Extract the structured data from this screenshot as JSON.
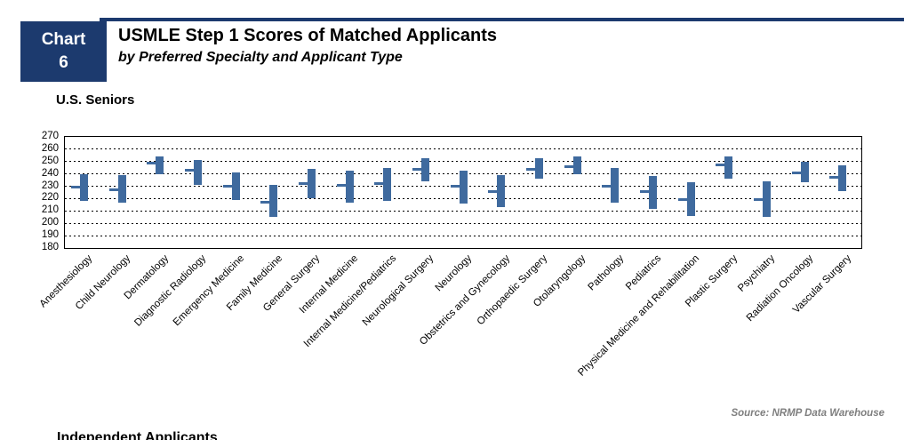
{
  "header": {
    "badge_line1": "Chart",
    "badge_line2": "6",
    "title": "USMLE Step 1 Scores of Matched Applicants",
    "subtitle": "by Preferred Specialty and Applicant Type"
  },
  "section_title": "U.S. Seniors",
  "footer": {
    "source": "Source: NRMP Data Warehouse",
    "next_section_title": "Independent Applicants"
  },
  "colors": {
    "accent_navy": "#1C3A6E",
    "bar_blue": "#3F6A9E",
    "source_gray": "#7F7F7F"
  },
  "chart_data": {
    "type": "bar",
    "subtype": "floating-range-bars-with-mean-tick",
    "title": "U.S. Seniors",
    "xlabel": "",
    "ylabel": "",
    "ylim": [
      180,
      270
    ],
    "yticks": [
      270,
      260,
      250,
      240,
      230,
      220,
      210,
      200,
      190,
      180
    ],
    "grid": "horizontal-dashed",
    "legend": "none",
    "categories": [
      "Anesthesiology",
      "Child Neurology",
      "Dermatology",
      "Diagnostic Radiology",
      "Emergency Medicine",
      "Family Medicine",
      "General Surgery",
      "Internal Medicine",
      "Internal Medicine/Pediatrics",
      "Neurological Surgery",
      "Neurology",
      "Obstetrics and Gynecology",
      "Orthopaedic Surgery",
      "Otolaryngology",
      "Pathology",
      "Pediatrics",
      "Physical Medicine and Rehabilitation",
      "Plastic Surgery",
      "Psychiatry",
      "Radiation Oncology",
      "Vascular Surgery"
    ],
    "series": [
      {
        "name": "range_low",
        "values": [
          218,
          217,
          240,
          231,
          219,
          205,
          220,
          217,
          218,
          234,
          216,
          213,
          236,
          240,
          217,
          212,
          206,
          236,
          205,
          233,
          226
        ]
      },
      {
        "name": "mean",
        "values": [
          229,
          227,
          249,
          243,
          230,
          217,
          232,
          231,
          232,
          244,
          230,
          226,
          244,
          246,
          230,
          226,
          219,
          247,
          219,
          241,
          237
        ]
      },
      {
        "name": "range_high",
        "values": [
          240,
          239,
          254,
          251,
          241,
          231,
          244,
          243,
          245,
          253,
          243,
          239,
          253,
          254,
          245,
          238,
          233,
          254,
          234,
          250,
          247
        ]
      }
    ]
  }
}
